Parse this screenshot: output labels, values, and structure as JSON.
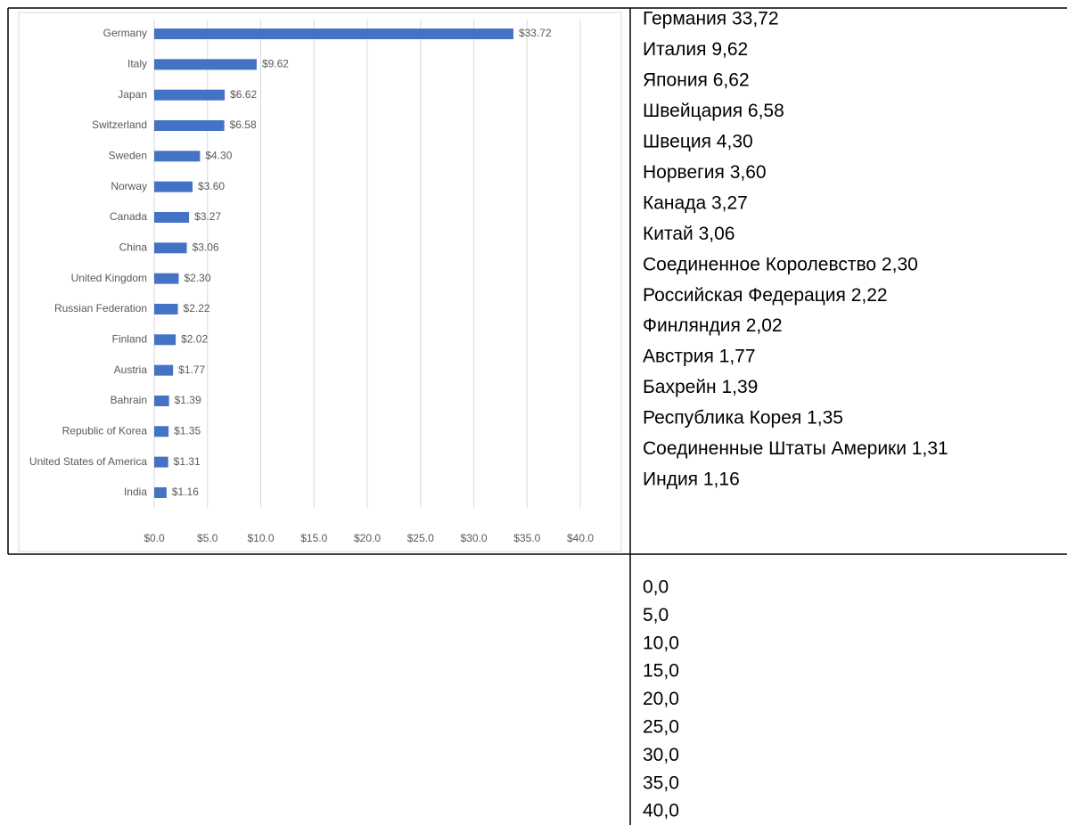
{
  "chart_data": {
    "type": "bar",
    "orientation": "horizontal",
    "categories": [
      "Germany",
      "Italy",
      "Japan",
      "Switzerland",
      "Sweden",
      "Norway",
      "Canada",
      "China",
      "United Kingdom",
      "Russian Federation",
      "Finland",
      "Austria",
      "Bahrain",
      "Republic of Korea",
      "United States of America",
      "India"
    ],
    "values": [
      33.72,
      9.62,
      6.62,
      6.58,
      4.3,
      3.6,
      3.27,
      3.06,
      2.3,
      2.22,
      2.02,
      1.77,
      1.39,
      1.35,
      1.31,
      1.16
    ],
    "value_labels": [
      "$33.72",
      "$9.62",
      "$6.62",
      "$6.58",
      "$4.30",
      "$3.60",
      "$3.27",
      "$3.06",
      "$2.30",
      "$2.22",
      "$2.02",
      "$1.77",
      "$1.39",
      "$1.35",
      "$1.31",
      "$1.16"
    ],
    "color": "#4472c4",
    "xlim": [
      0,
      40
    ],
    "xticks": [
      {
        "value": 0,
        "label": "$0.0"
      },
      {
        "value": 5,
        "label": "$5.0"
      },
      {
        "value": 10,
        "label": "$10.0"
      },
      {
        "value": 15,
        "label": "$15.0"
      },
      {
        "value": 20,
        "label": "$20.0"
      },
      {
        "value": 25,
        "label": "$25.0"
      },
      {
        "value": 30,
        "label": "$30.0"
      },
      {
        "value": 35,
        "label": "$35.0"
      },
      {
        "value": 40,
        "label": "$40.0"
      }
    ],
    "grid": true
  },
  "table": {
    "rows": [
      {
        "lines": [
          "Германия 33,72",
          "Италия 9,62",
          "Япония 6,62",
          "Швейцария 6,58",
          "Швеция 4,30",
          "Норвегия 3,60",
          "Канада 3,27",
          "Китай 3,06",
          "Соединенное Королевство 2,30",
          "Российская Федерация 2,22",
          "Финляндия 2,02",
          "Австрия 1,77",
          "Бахрейн 1,39",
          "Республика Корея 1,35",
          "Соединенные Штаты Америки 1,31",
          "Индия 1,16"
        ]
      },
      {
        "lines": [
          "0,0",
          "5,0",
          "10,0",
          "15,0",
          "20,0",
          "25,0",
          "30,0",
          "35,0",
          "40,0"
        ]
      }
    ]
  }
}
